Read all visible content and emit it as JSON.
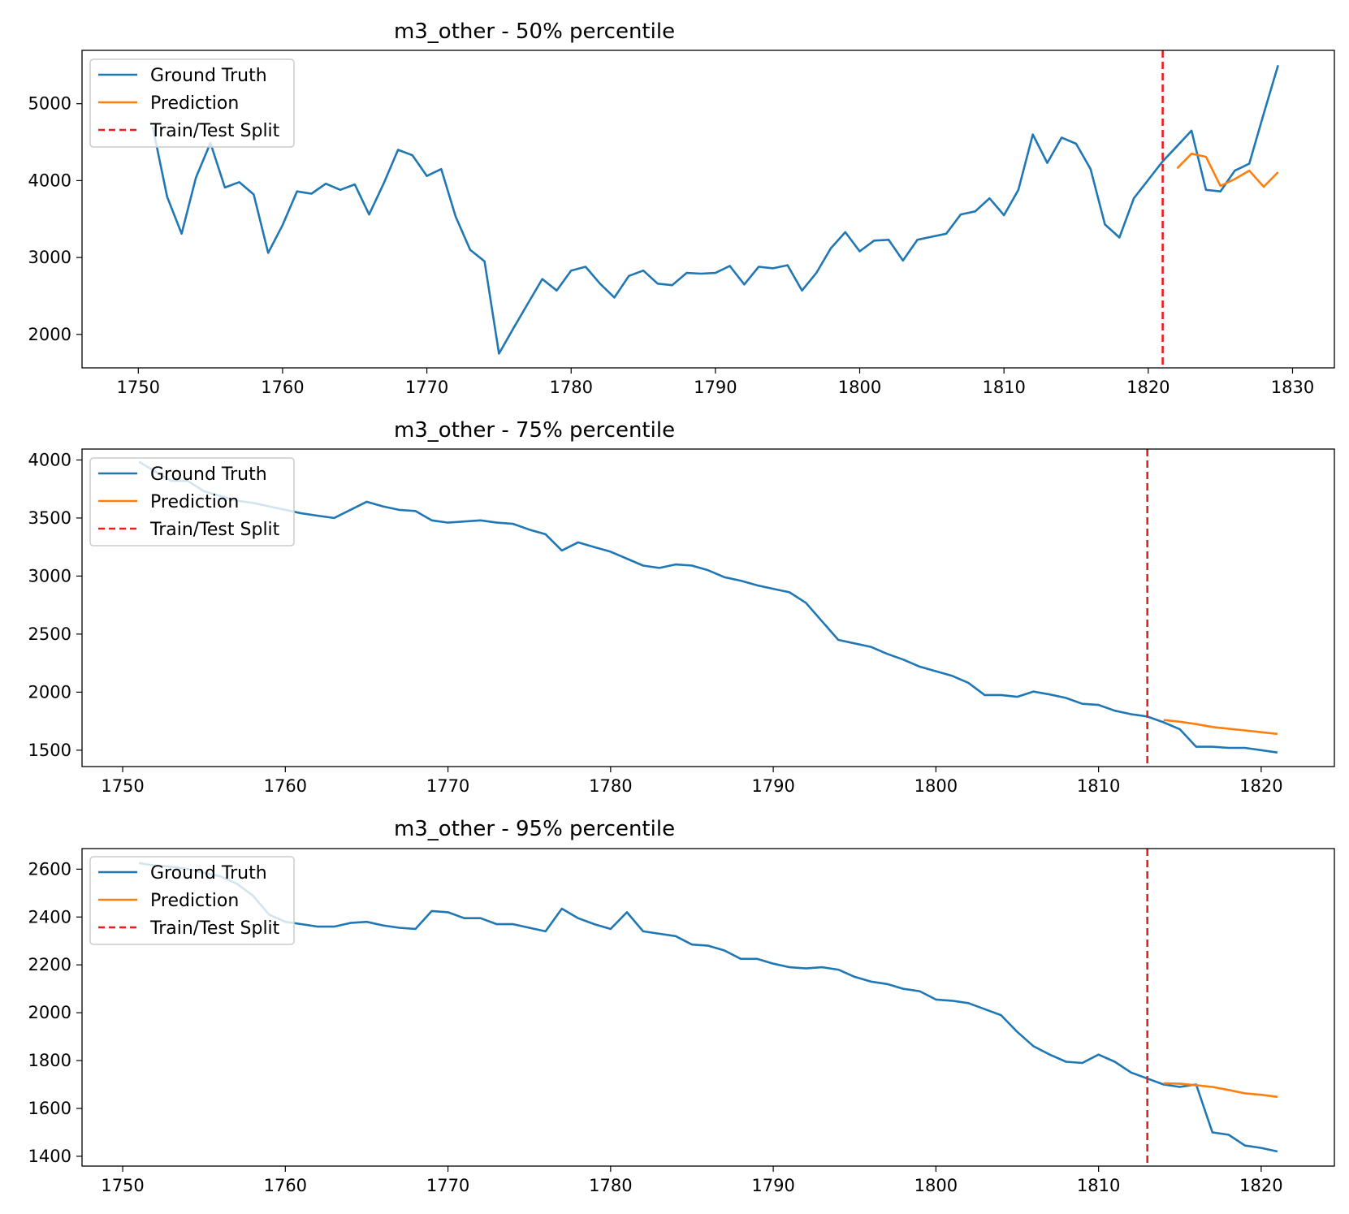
{
  "chart_data": [
    {
      "type": "line",
      "title": "m3_other - 50% percentile",
      "xlabel": "",
      "ylabel": "",
      "xlim": [
        1746.1,
        1832.9
      ],
      "ylim": [
        1565,
        5694
      ],
      "xticks": [
        1750,
        1760,
        1770,
        1780,
        1790,
        1800,
        1810,
        1820,
        1830
      ],
      "yticks": [
        2000,
        3000,
        4000,
        5000
      ],
      "split": 1821,
      "legend": [
        "Ground Truth",
        "Prediction",
        "Train/Test Split"
      ],
      "legend_loc": "upper-left",
      "series": [
        {
          "name": "Ground Truth",
          "color": "#1f77b4",
          "x": [
            1751,
            1752,
            1753,
            1754,
            1755,
            1756,
            1757,
            1758,
            1759,
            1760,
            1761,
            1762,
            1763,
            1764,
            1765,
            1766,
            1767,
            1768,
            1769,
            1770,
            1771,
            1772,
            1773,
            1774,
            1775,
            1776,
            1777,
            1778,
            1779,
            1780,
            1781,
            1782,
            1783,
            1784,
            1785,
            1786,
            1787,
            1788,
            1789,
            1790,
            1791,
            1792,
            1793,
            1794,
            1795,
            1796,
            1797,
            1798,
            1799,
            1800,
            1801,
            1802,
            1803,
            1804,
            1805,
            1806,
            1807,
            1808,
            1809,
            1810,
            1811,
            1812,
            1813,
            1814,
            1815,
            1816,
            1817,
            1818,
            1819,
            1820,
            1821,
            1822,
            1823,
            1824,
            1825,
            1826,
            1827,
            1828,
            1829
          ],
          "values": [
            4700,
            3790,
            3310,
            4040,
            4490,
            3910,
            3980,
            3820,
            3060,
            3420,
            3860,
            3830,
            3960,
            3880,
            3950,
            3560,
            3960,
            4400,
            4330,
            4060,
            4150,
            3530,
            3100,
            2950,
            1750,
            2080,
            2400,
            2720,
            2570,
            2830,
            2880,
            2660,
            2480,
            2760,
            2830,
            2660,
            2640,
            2800,
            2790,
            2800,
            2890,
            2650,
            2880,
            2860,
            2900,
            2570,
            2800,
            3120,
            3330,
            3080,
            3220,
            3230,
            2960,
            3230,
            3270,
            3310,
            3560,
            3600,
            3770,
            3550,
            3880,
            4600,
            4230,
            4560,
            4480,
            4150,
            3430,
            3260,
            3770,
            4010,
            4250,
            4450,
            4650,
            3880,
            3860,
            4130,
            4220,
            4870,
            5500
          ]
        },
        {
          "name": "Prediction",
          "color": "#ff7f0e",
          "x": [
            1822,
            1823,
            1824,
            1825,
            1826,
            1827,
            1828,
            1829
          ],
          "values": [
            4160,
            4350,
            4310,
            3930,
            4020,
            4130,
            3920,
            4110
          ]
        }
      ]
    },
    {
      "type": "line",
      "title": "m3_other - 75% percentile",
      "xlabel": "",
      "ylabel": "",
      "xlim": [
        1747.5,
        1824.5
      ],
      "ylim": [
        1359,
        4094
      ],
      "xticks": [
        1750,
        1760,
        1770,
        1780,
        1790,
        1800,
        1810,
        1820
      ],
      "yticks": [
        1500,
        2000,
        2500,
        3000,
        3500,
        4000
      ],
      "split": 1813,
      "legend": [
        "Ground Truth",
        "Prediction",
        "Train/Test Split"
      ],
      "legend_loc": "upper-left",
      "series": [
        {
          "name": "Ground Truth",
          "color": "#1f77b4",
          "x": [
            1751,
            1752,
            1753,
            1754,
            1755,
            1756,
            1757,
            1758,
            1759,
            1760,
            1761,
            1762,
            1763,
            1764,
            1765,
            1766,
            1767,
            1768,
            1769,
            1770,
            1771,
            1772,
            1773,
            1774,
            1775,
            1776,
            1777,
            1778,
            1779,
            1780,
            1781,
            1782,
            1783,
            1784,
            1785,
            1786,
            1787,
            1788,
            1789,
            1790,
            1791,
            1792,
            1793,
            1794,
            1795,
            1796,
            1797,
            1798,
            1799,
            1800,
            1801,
            1802,
            1803,
            1804,
            1805,
            1806,
            1807,
            1808,
            1809,
            1810,
            1811,
            1812,
            1813,
            1814,
            1815,
            1816,
            1817,
            1818,
            1819,
            1820,
            1821
          ],
          "values": [
            3985,
            3900,
            3820,
            3820,
            3730,
            3690,
            3650,
            3630,
            3600,
            3570,
            3540,
            3520,
            3500,
            3570,
            3640,
            3600,
            3570,
            3560,
            3480,
            3460,
            3470,
            3480,
            3460,
            3450,
            3400,
            3360,
            3220,
            3290,
            3250,
            3210,
            3150,
            3090,
            3070,
            3100,
            3090,
            3050,
            2990,
            2960,
            2920,
            2890,
            2860,
            2770,
            2610,
            2450,
            2420,
            2390,
            2330,
            2280,
            2220,
            2180,
            2140,
            2080,
            1975,
            1975,
            1960,
            2005,
            1980,
            1950,
            1900,
            1890,
            1840,
            1810,
            1790,
            1740,
            1680,
            1530,
            1530,
            1520,
            1520,
            1500,
            1480
          ]
        },
        {
          "name": "Prediction",
          "color": "#ff7f0e",
          "x": [
            1814,
            1815,
            1816,
            1817,
            1818,
            1819,
            1820,
            1821
          ],
          "values": [
            1760,
            1745,
            1725,
            1700,
            1685,
            1670,
            1655,
            1640
          ]
        }
      ]
    },
    {
      "type": "line",
      "title": "m3_other - 95% percentile",
      "xlabel": "",
      "ylabel": "",
      "xlim": [
        1747.5,
        1824.5
      ],
      "ylim": [
        1359,
        2686
      ],
      "xticks": [
        1750,
        1760,
        1770,
        1780,
        1790,
        1800,
        1810,
        1820
      ],
      "yticks": [
        1400,
        1600,
        1800,
        2000,
        2200,
        2400,
        2600
      ],
      "split": 1813,
      "legend": [
        "Ground Truth",
        "Prediction",
        "Train/Test Split"
      ],
      "legend_loc": "upper-left",
      "series": [
        {
          "name": "Ground Truth",
          "color": "#1f77b4",
          "x": [
            1751,
            1752,
            1753,
            1754,
            1755,
            1756,
            1757,
            1758,
            1759,
            1760,
            1761,
            1762,
            1763,
            1764,
            1765,
            1766,
            1767,
            1768,
            1769,
            1770,
            1771,
            1772,
            1773,
            1774,
            1775,
            1776,
            1777,
            1778,
            1779,
            1780,
            1781,
            1782,
            1783,
            1784,
            1785,
            1786,
            1787,
            1788,
            1789,
            1790,
            1791,
            1792,
            1793,
            1794,
            1795,
            1796,
            1797,
            1798,
            1799,
            1800,
            1801,
            1802,
            1803,
            1804,
            1805,
            1806,
            1807,
            1808,
            1809,
            1810,
            1811,
            1812,
            1813,
            1814,
            1815,
            1816,
            1817,
            1818,
            1819,
            1820,
            1821
          ],
          "values": [
            2625,
            2615,
            2610,
            2600,
            2585,
            2570,
            2540,
            2490,
            2410,
            2380,
            2370,
            2360,
            2360,
            2375,
            2380,
            2365,
            2355,
            2350,
            2425,
            2420,
            2395,
            2395,
            2370,
            2370,
            2355,
            2340,
            2435,
            2395,
            2370,
            2350,
            2420,
            2340,
            2330,
            2320,
            2285,
            2280,
            2260,
            2225,
            2225,
            2205,
            2190,
            2185,
            2190,
            2180,
            2150,
            2130,
            2120,
            2100,
            2090,
            2055,
            2050,
            2040,
            2015,
            1990,
            1920,
            1860,
            1825,
            1795,
            1790,
            1825,
            1795,
            1750,
            1725,
            1700,
            1690,
            1700,
            1500,
            1490,
            1445,
            1435,
            1420
          ]
        },
        {
          "name": "Prediction",
          "color": "#ff7f0e",
          "x": [
            1814,
            1815,
            1816,
            1817,
            1818,
            1819,
            1820,
            1821
          ],
          "values": [
            1705,
            1703,
            1697,
            1690,
            1677,
            1663,
            1657,
            1648
          ]
        }
      ]
    }
  ]
}
